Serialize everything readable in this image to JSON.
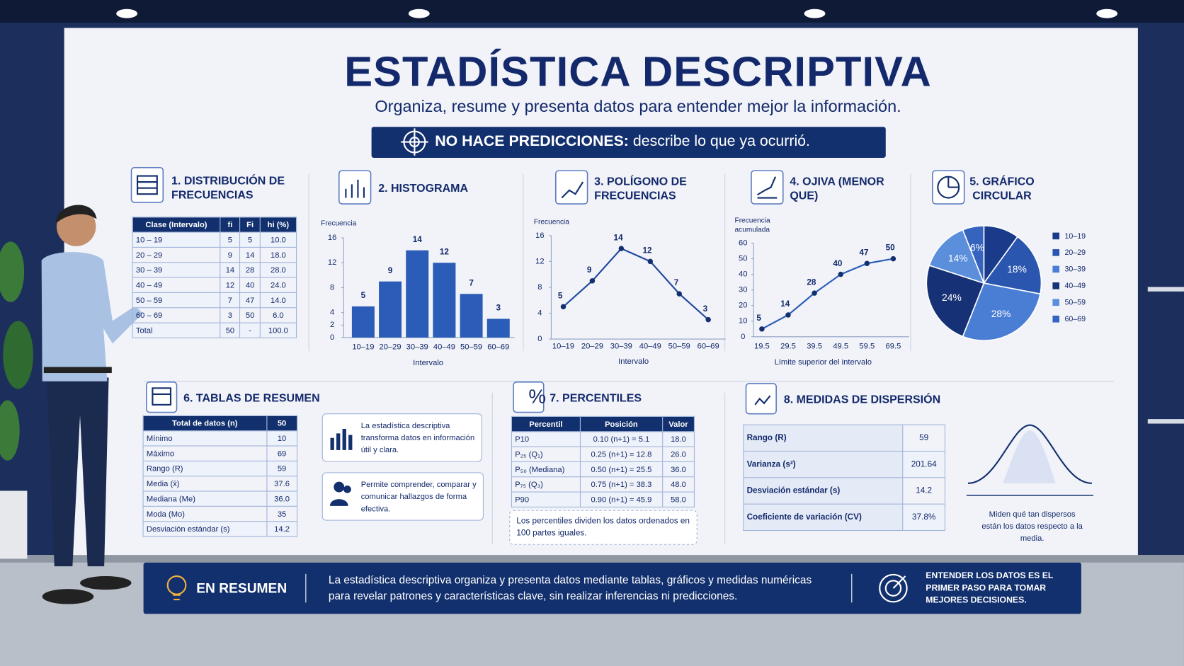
{
  "header": {
    "title": "ESTADÍSTICA DESCRIPTIVA",
    "subtitle": "Organiza, resume y presenta datos para entender mejor la información.",
    "banner_bold": "NO HACE PREDICCIONES:",
    "banner_text": "describe lo que ya ocurrió."
  },
  "frequency_table": {
    "title": "1. DISTRIBUCIÓN DE FRECUENCIAS",
    "columns": [
      "Clase (Intervalo)",
      "fi",
      "Fi",
      "hi (%)"
    ],
    "rows": [
      [
        "10 – 19",
        "5",
        "5",
        "10.0"
      ],
      [
        "20 – 29",
        "9",
        "14",
        "18.0"
      ],
      [
        "30 – 39",
        "14",
        "28",
        "28.0"
      ],
      [
        "40 – 49",
        "12",
        "40",
        "24.0"
      ],
      [
        "50 – 59",
        "7",
        "47",
        "14.0"
      ],
      [
        "60 – 69",
        "3",
        "50",
        "6.0"
      ],
      [
        "Total",
        "50",
        "-",
        "100.0"
      ]
    ]
  },
  "chart_data": [
    {
      "type": "bar",
      "title": "2. HISTOGRAMA",
      "y_label": "Frecuencia",
      "x_label": "Intervalo",
      "categories": [
        "10–19",
        "20–29",
        "30–39",
        "40–49",
        "50–59",
        "60–69"
      ],
      "values": [
        5,
        9,
        14,
        12,
        7,
        3
      ],
      "color": "#2a5cb8",
      "ylim": [
        0,
        16
      ],
      "yticks": [
        0,
        2,
        4,
        8,
        12,
        16
      ]
    },
    {
      "type": "line",
      "title": "3. POLÍGONO DE FRECUENCIAS",
      "y_label": "Frecuencia",
      "x_label": "Intervalo",
      "categories": [
        "10–19",
        "20–29",
        "30–39",
        "40–49",
        "50–59",
        "60–69"
      ],
      "values": [
        5,
        9,
        14,
        12,
        7,
        3
      ],
      "color": "#1f47a0",
      "ylim": [
        0,
        16
      ],
      "yticks": [
        0,
        4,
        8,
        12,
        16
      ]
    },
    {
      "type": "line",
      "title": "4. OJIVA (MENOR QUE)",
      "y_label": "Frecuencia acumulada",
      "x_label": "Límite superior del intervalo",
      "categories": [
        "19.5",
        "29.5",
        "39.5",
        "49.5",
        "59.5",
        "69.5"
      ],
      "values": [
        5,
        14,
        28,
        40,
        47,
        50
      ],
      "color": "#2a5cb8",
      "ylim": [
        0,
        60
      ],
      "yticks": [
        0,
        10,
        20,
        30,
        40,
        50,
        60
      ]
    },
    {
      "type": "pie",
      "title": "5. GRÁFICO CIRCULAR",
      "categories": [
        "10–19",
        "20–29",
        "30–39",
        "40–49",
        "50–59",
        "60–69"
      ],
      "values": [
        10,
        18,
        28,
        24,
        14,
        6
      ],
      "value_labels": [
        null,
        "18%",
        "28%",
        "24%",
        "14%",
        "6%"
      ],
      "colors": [
        "#1a3a8a",
        "#2a56b0",
        "#4a7ed4",
        "#173176",
        "#5b8fdc",
        "#3563be"
      ]
    }
  ],
  "summary": {
    "title": "6. TABLAS DE RESUMEN",
    "rows": [
      [
        "Total de datos (n)",
        "50"
      ],
      [
        "Mínimo",
        "10"
      ],
      [
        "Máximo",
        "69"
      ],
      [
        "Rango (R)",
        "59"
      ],
      [
        "Media (x̄)",
        "37.6"
      ],
      [
        "Mediana (Me)",
        "36.0"
      ],
      [
        "Moda (Mo)",
        "35"
      ],
      [
        "Desviación estándar (s)",
        "14.2"
      ]
    ],
    "notes": [
      "La estadística descriptiva transforma datos en información útil y clara.",
      "Permite comprender, comparar y comunicar hallazgos de forma efectiva."
    ]
  },
  "percentiles": {
    "title": "7. PERCENTILES",
    "columns": [
      "Percentil",
      "Posición",
      "Valor"
    ],
    "rows": [
      [
        "P10",
        "0.10 (n+1) = 5.1",
        "18.0"
      ],
      [
        "P₂₅ (Q₁)",
        "0.25 (n+1) = 12.8",
        "26.0"
      ],
      [
        "P₅₀ (Mediana)",
        "0.50 (n+1) = 25.5",
        "36.0"
      ],
      [
        "P₇₅ (Q₃)",
        "0.75 (n+1) = 38.3",
        "48.0"
      ],
      [
        "P90",
        "0.90 (n+1) = 45.9",
        "58.0"
      ]
    ],
    "note": "Los percentiles dividen los datos ordenados en 100 partes iguales."
  },
  "dispersion": {
    "title": "8. MEDIDAS DE DISPERSIÓN",
    "rows": [
      [
        "Rango (R)",
        "59"
      ],
      [
        "Varianza (s²)",
        "201.64"
      ],
      [
        "Desviación estándar (s)",
        "14.2"
      ],
      [
        "Coeficiente de variación (CV)",
        "37.8%"
      ]
    ],
    "note": "Miden qué tan dispersos están los datos respecto a la media."
  },
  "footer": {
    "label": "EN RESUMEN",
    "text": "La estadística descriptiva organiza y presenta datos mediante tablas, gráficos y medidas numéricas para revelar patrones y características clave, sin realizar inferencias ni predicciones.",
    "tagline": "ENTENDER LOS DATOS ES EL PRIMER PASO PARA TOMAR MEJORES DECISIONES."
  }
}
